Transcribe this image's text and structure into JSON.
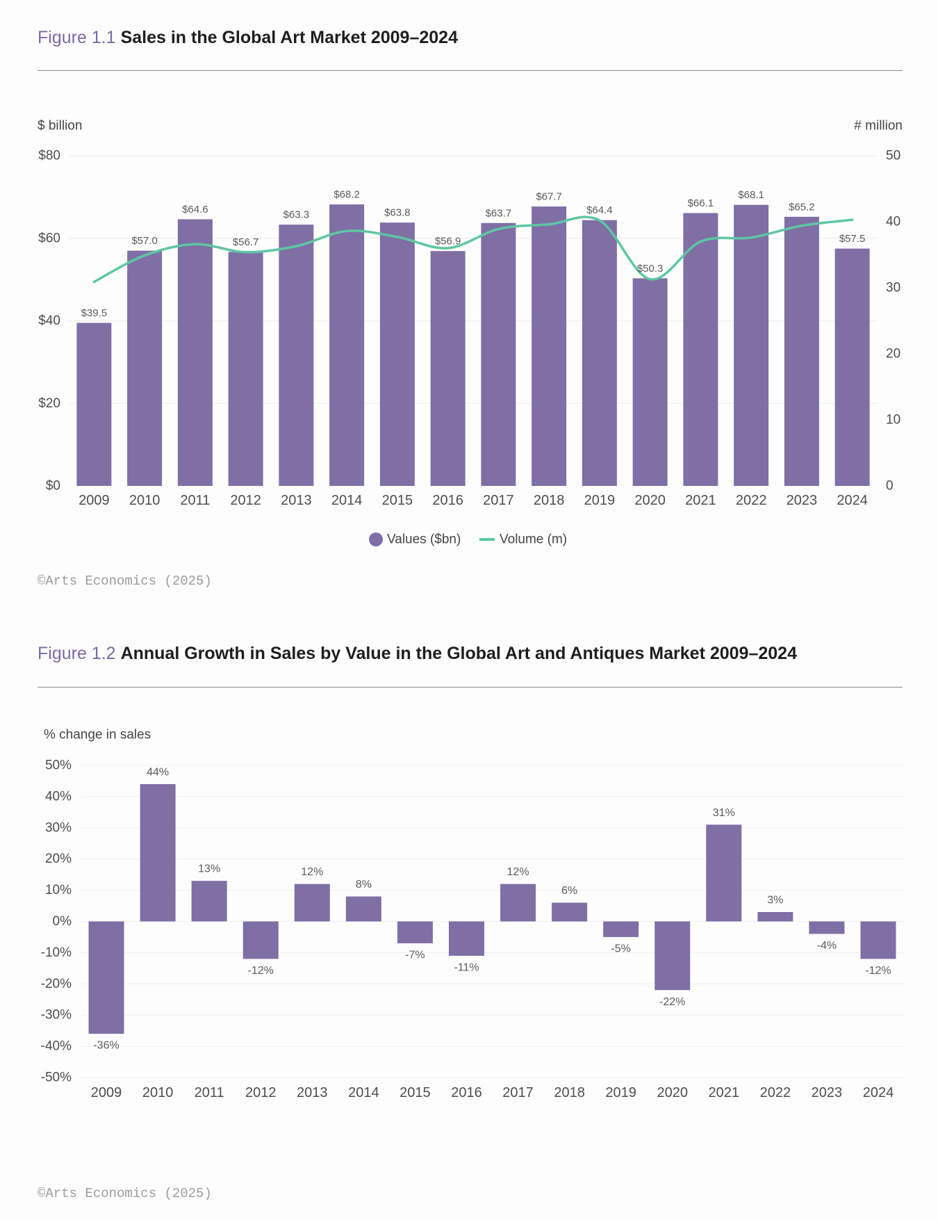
{
  "figures": [
    {
      "label": "Figure 1.1",
      "credit": "©Arts Economics (2025)"
    },
    {
      "label": "Figure 1.2",
      "credit": "©Arts Economics (2025)"
    }
  ],
  "chart_data": [
    {
      "type": "bar",
      "title": "Sales in the Global Art Market 2009–2024",
      "categories": [
        "2009",
        "2010",
        "2011",
        "2012",
        "2013",
        "2014",
        "2015",
        "2016",
        "2017",
        "2018",
        "2019",
        "2020",
        "2021",
        "2022",
        "2023",
        "2024"
      ],
      "series": [
        {
          "name": "Values ($bn)",
          "values": [
            39.5,
            57.0,
            64.6,
            56.7,
            63.3,
            68.2,
            63.8,
            56.9,
            63.7,
            67.7,
            64.4,
            50.3,
            66.1,
            68.1,
            65.2,
            57.5
          ],
          "labels": [
            "$39.5",
            "$57.0",
            "$64.6",
            "$56.7",
            "$63.3",
            "$68.2",
            "$63.8",
            "$56.9",
            "$63.7",
            "$67.7",
            "$64.4",
            "$50.3",
            "$66.1",
            "$68.1",
            "$65.2",
            "$57.5"
          ]
        },
        {
          "name": "Volume (m)",
          "values": [
            30.9,
            34.9,
            36.6,
            35.4,
            36.3,
            38.6,
            37.7,
            36.0,
            38.9,
            39.6,
            40.2,
            31.3,
            37.0,
            37.6,
            39.4,
            40.3
          ]
        }
      ],
      "xlabel": "",
      "ylabel": "$ billion",
      "ylabel_right": "# million",
      "ylim": [
        0,
        80
      ],
      "ylim_right": [
        0,
        50
      ],
      "yticks": [
        {
          "value": 0,
          "label": "$0"
        },
        {
          "value": 20,
          "label": "$20"
        },
        {
          "value": 40,
          "label": "$40"
        },
        {
          "value": 60,
          "label": "$60"
        },
        {
          "value": 80,
          "label": "$80"
        }
      ],
      "yticks_right": [
        {
          "value": 0,
          "label": "0"
        },
        {
          "value": 10,
          "label": "10"
        },
        {
          "value": 20,
          "label": "20"
        },
        {
          "value": 30,
          "label": "30"
        },
        {
          "value": 40,
          "label": "40"
        },
        {
          "value": 50,
          "label": "50"
        }
      ],
      "grid": true,
      "legend": "bottom-center",
      "colors": {
        "bar": "#7f6fa5",
        "line": "#5ec6a3"
      }
    },
    {
      "type": "bar",
      "title": "Annual Growth in Sales by Value in the Global Art and Antiques Market 2009–2024",
      "categories": [
        "2009",
        "2010",
        "2011",
        "2012",
        "2013",
        "2014",
        "2015",
        "2016",
        "2017",
        "2018",
        "2019",
        "2020",
        "2021",
        "2022",
        "2023",
        "2024"
      ],
      "values": [
        -36,
        44,
        13,
        -12,
        12,
        8,
        -7,
        -11,
        12,
        6,
        -5,
        -22,
        31,
        3,
        -4,
        -12
      ],
      "labels": [
        "-36%",
        "44%",
        "13%",
        "-12%",
        "12%",
        "8%",
        "-7%",
        "-11%",
        "12%",
        "6%",
        "-5%",
        "-22%",
        "31%",
        "3%",
        "-4%",
        "-12%"
      ],
      "xlabel": "",
      "ylabel": "% change in sales",
      "ylim": [
        -50,
        50
      ],
      "yticks": [
        {
          "value": 50,
          "label": "50%"
        },
        {
          "value": 40,
          "label": "40%"
        },
        {
          "value": 30,
          "label": "30%"
        },
        {
          "value": 20,
          "label": "20%"
        },
        {
          "value": 10,
          "label": "10%"
        },
        {
          "value": 0,
          "label": "0%"
        },
        {
          "value": -10,
          "label": "-10%"
        },
        {
          "value": -20,
          "label": "-20%"
        },
        {
          "value": -30,
          "label": "-30%"
        },
        {
          "value": -40,
          "label": "-40%"
        },
        {
          "value": -50,
          "label": "-50%"
        }
      ],
      "grid": true,
      "colors": {
        "bar": "#7f6fa5"
      }
    }
  ]
}
